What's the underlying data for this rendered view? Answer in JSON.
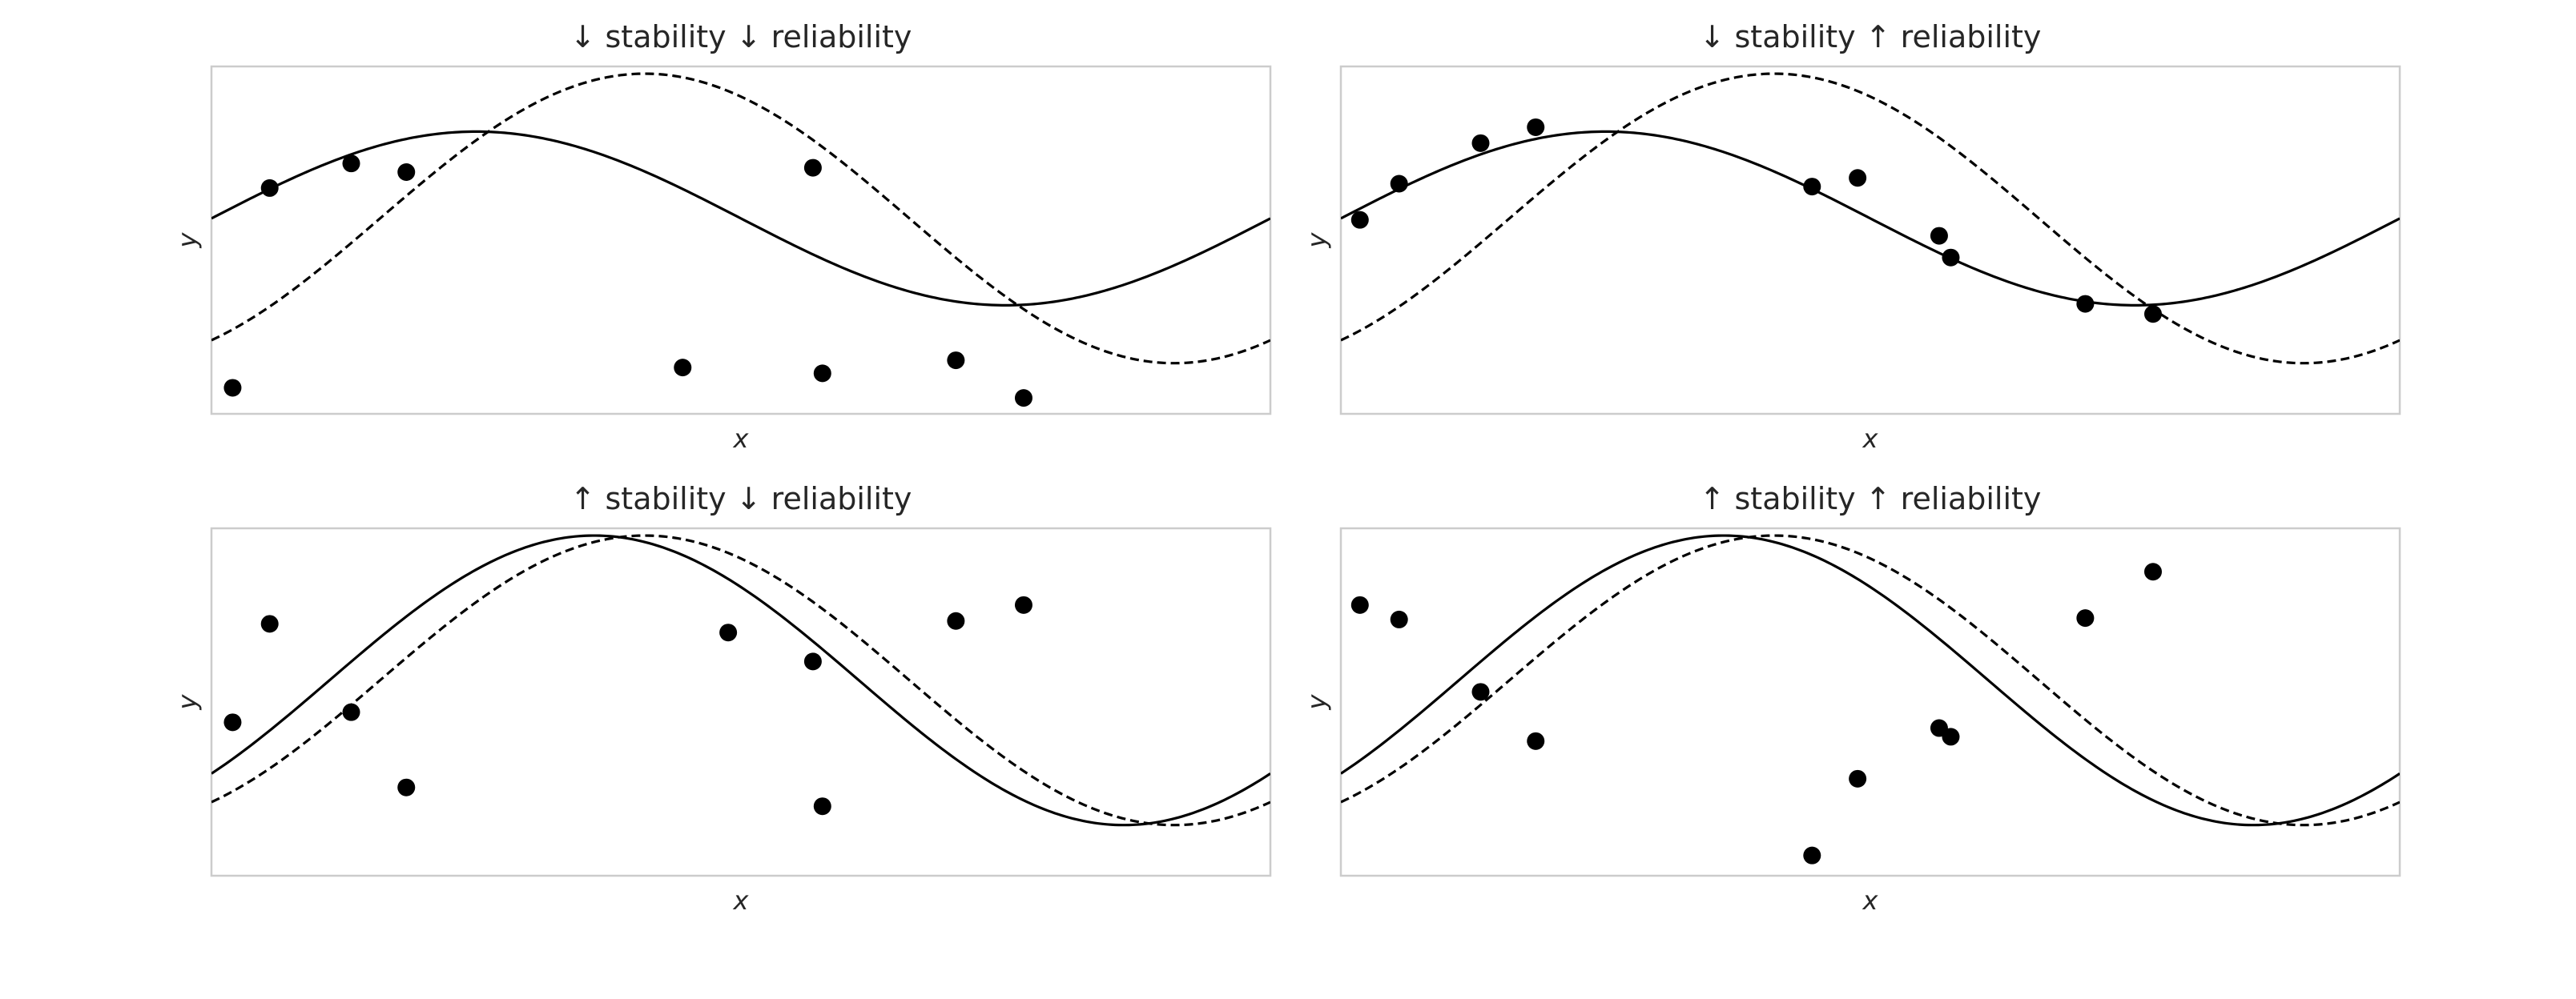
{
  "chart_data": [
    {
      "type": "line",
      "title": "↓ stability  ↓ reliability",
      "xlabel": "x",
      "ylabel": "y",
      "xlim": [
        0,
        1
      ],
      "ylim": [
        -1.35,
        1.05
      ],
      "grid": false,
      "series": [
        {
          "style": "solid",
          "amplitude": 0.6,
          "phase": 0.0
        },
        {
          "style": "dashed",
          "amplitude": 1.0,
          "phase": -1.0
        }
      ],
      "points": {
        "x": [
          0.02,
          0.055,
          0.132,
          0.184,
          0.445,
          0.568,
          0.577,
          0.703,
          0.767
        ],
        "y": [
          -1.17,
          0.21,
          0.38,
          0.32,
          -1.03,
          0.35,
          -1.07,
          -0.98,
          -1.24
        ]
      }
    },
    {
      "type": "line",
      "title": "↓ stability  ↑ reliability",
      "xlabel": "x",
      "ylabel": "y",
      "xlim": [
        0,
        1
      ],
      "ylim": [
        -1.35,
        1.05
      ],
      "grid": false,
      "series": [
        {
          "style": "solid",
          "amplitude": 0.6,
          "phase": 0.0
        },
        {
          "style": "dashed",
          "amplitude": 1.0,
          "phase": -1.0
        }
      ],
      "points": {
        "x": [
          0.018,
          0.055,
          0.132,
          0.184,
          0.445,
          0.488,
          0.565,
          0.576,
          0.703,
          0.767
        ],
        "y": [
          -0.01,
          0.24,
          0.52,
          0.63,
          0.22,
          0.28,
          -0.12,
          -0.27,
          -0.59,
          -0.66
        ]
      }
    },
    {
      "type": "line",
      "title": "↑ stability  ↓ reliability",
      "xlabel": "x",
      "ylabel": "y",
      "xlim": [
        0,
        1
      ],
      "ylim": [
        -1.35,
        1.05
      ],
      "grid": false,
      "series": [
        {
          "style": "solid",
          "amplitude": 1.0,
          "phase": -0.7
        },
        {
          "style": "dashed",
          "amplitude": 1.0,
          "phase": -1.0
        }
      ],
      "points": {
        "x": [
          0.02,
          0.055,
          0.132,
          0.184,
          0.488,
          0.568,
          0.577,
          0.703,
          0.767
        ],
        "y": [
          -0.29,
          0.39,
          -0.22,
          -0.74,
          0.33,
          0.13,
          -0.87,
          0.41,
          0.52
        ]
      }
    },
    {
      "type": "line",
      "title": "↑ stability  ↑ reliability",
      "xlabel": "x",
      "ylabel": "y",
      "xlim": [
        0,
        1
      ],
      "ylim": [
        -1.35,
        1.05
      ],
      "grid": false,
      "series": [
        {
          "style": "solid",
          "amplitude": 1.0,
          "phase": -0.7
        },
        {
          "style": "dashed",
          "amplitude": 1.0,
          "phase": -1.0
        }
      ],
      "points": {
        "x": [
          0.018,
          0.055,
          0.132,
          0.184,
          0.445,
          0.488,
          0.565,
          0.576,
          0.703,
          0.767
        ],
        "y": [
          0.52,
          0.42,
          -0.08,
          -0.42,
          -1.21,
          -0.68,
          -0.33,
          -0.39,
          0.43,
          0.75
        ]
      }
    }
  ]
}
